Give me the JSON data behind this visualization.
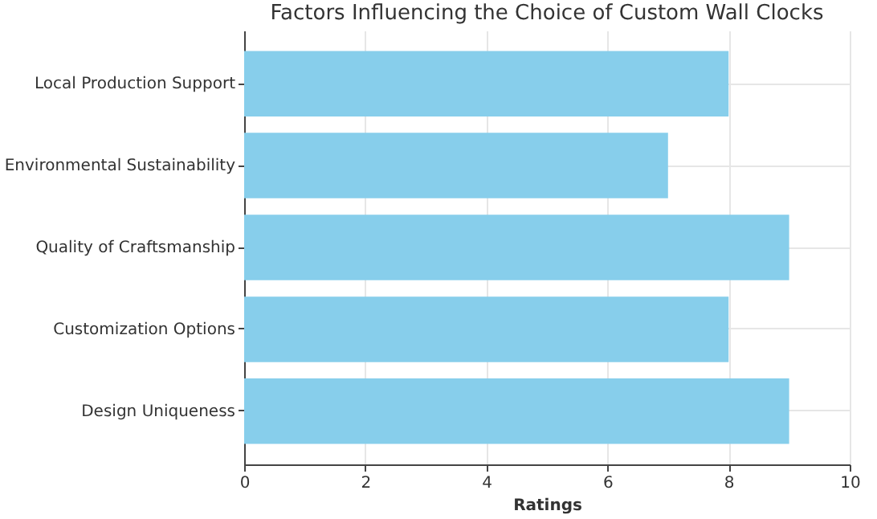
{
  "chart_data": {
    "type": "bar",
    "orientation": "horizontal",
    "title": "Factors Influencing the Choice of Custom Wall Clocks",
    "xlabel": "Ratings",
    "categories": [
      "Local Production Support",
      "Environmental Sustainability",
      "Quality of Craftsmanship",
      "Customization Options",
      "Design Uniqueness"
    ],
    "values": [
      8,
      7,
      9,
      8,
      9
    ],
    "color": "#87ceeb",
    "xlim": [
      0,
      10
    ],
    "xticks": [
      0,
      2,
      4,
      6,
      8,
      10
    ],
    "grid": true
  }
}
